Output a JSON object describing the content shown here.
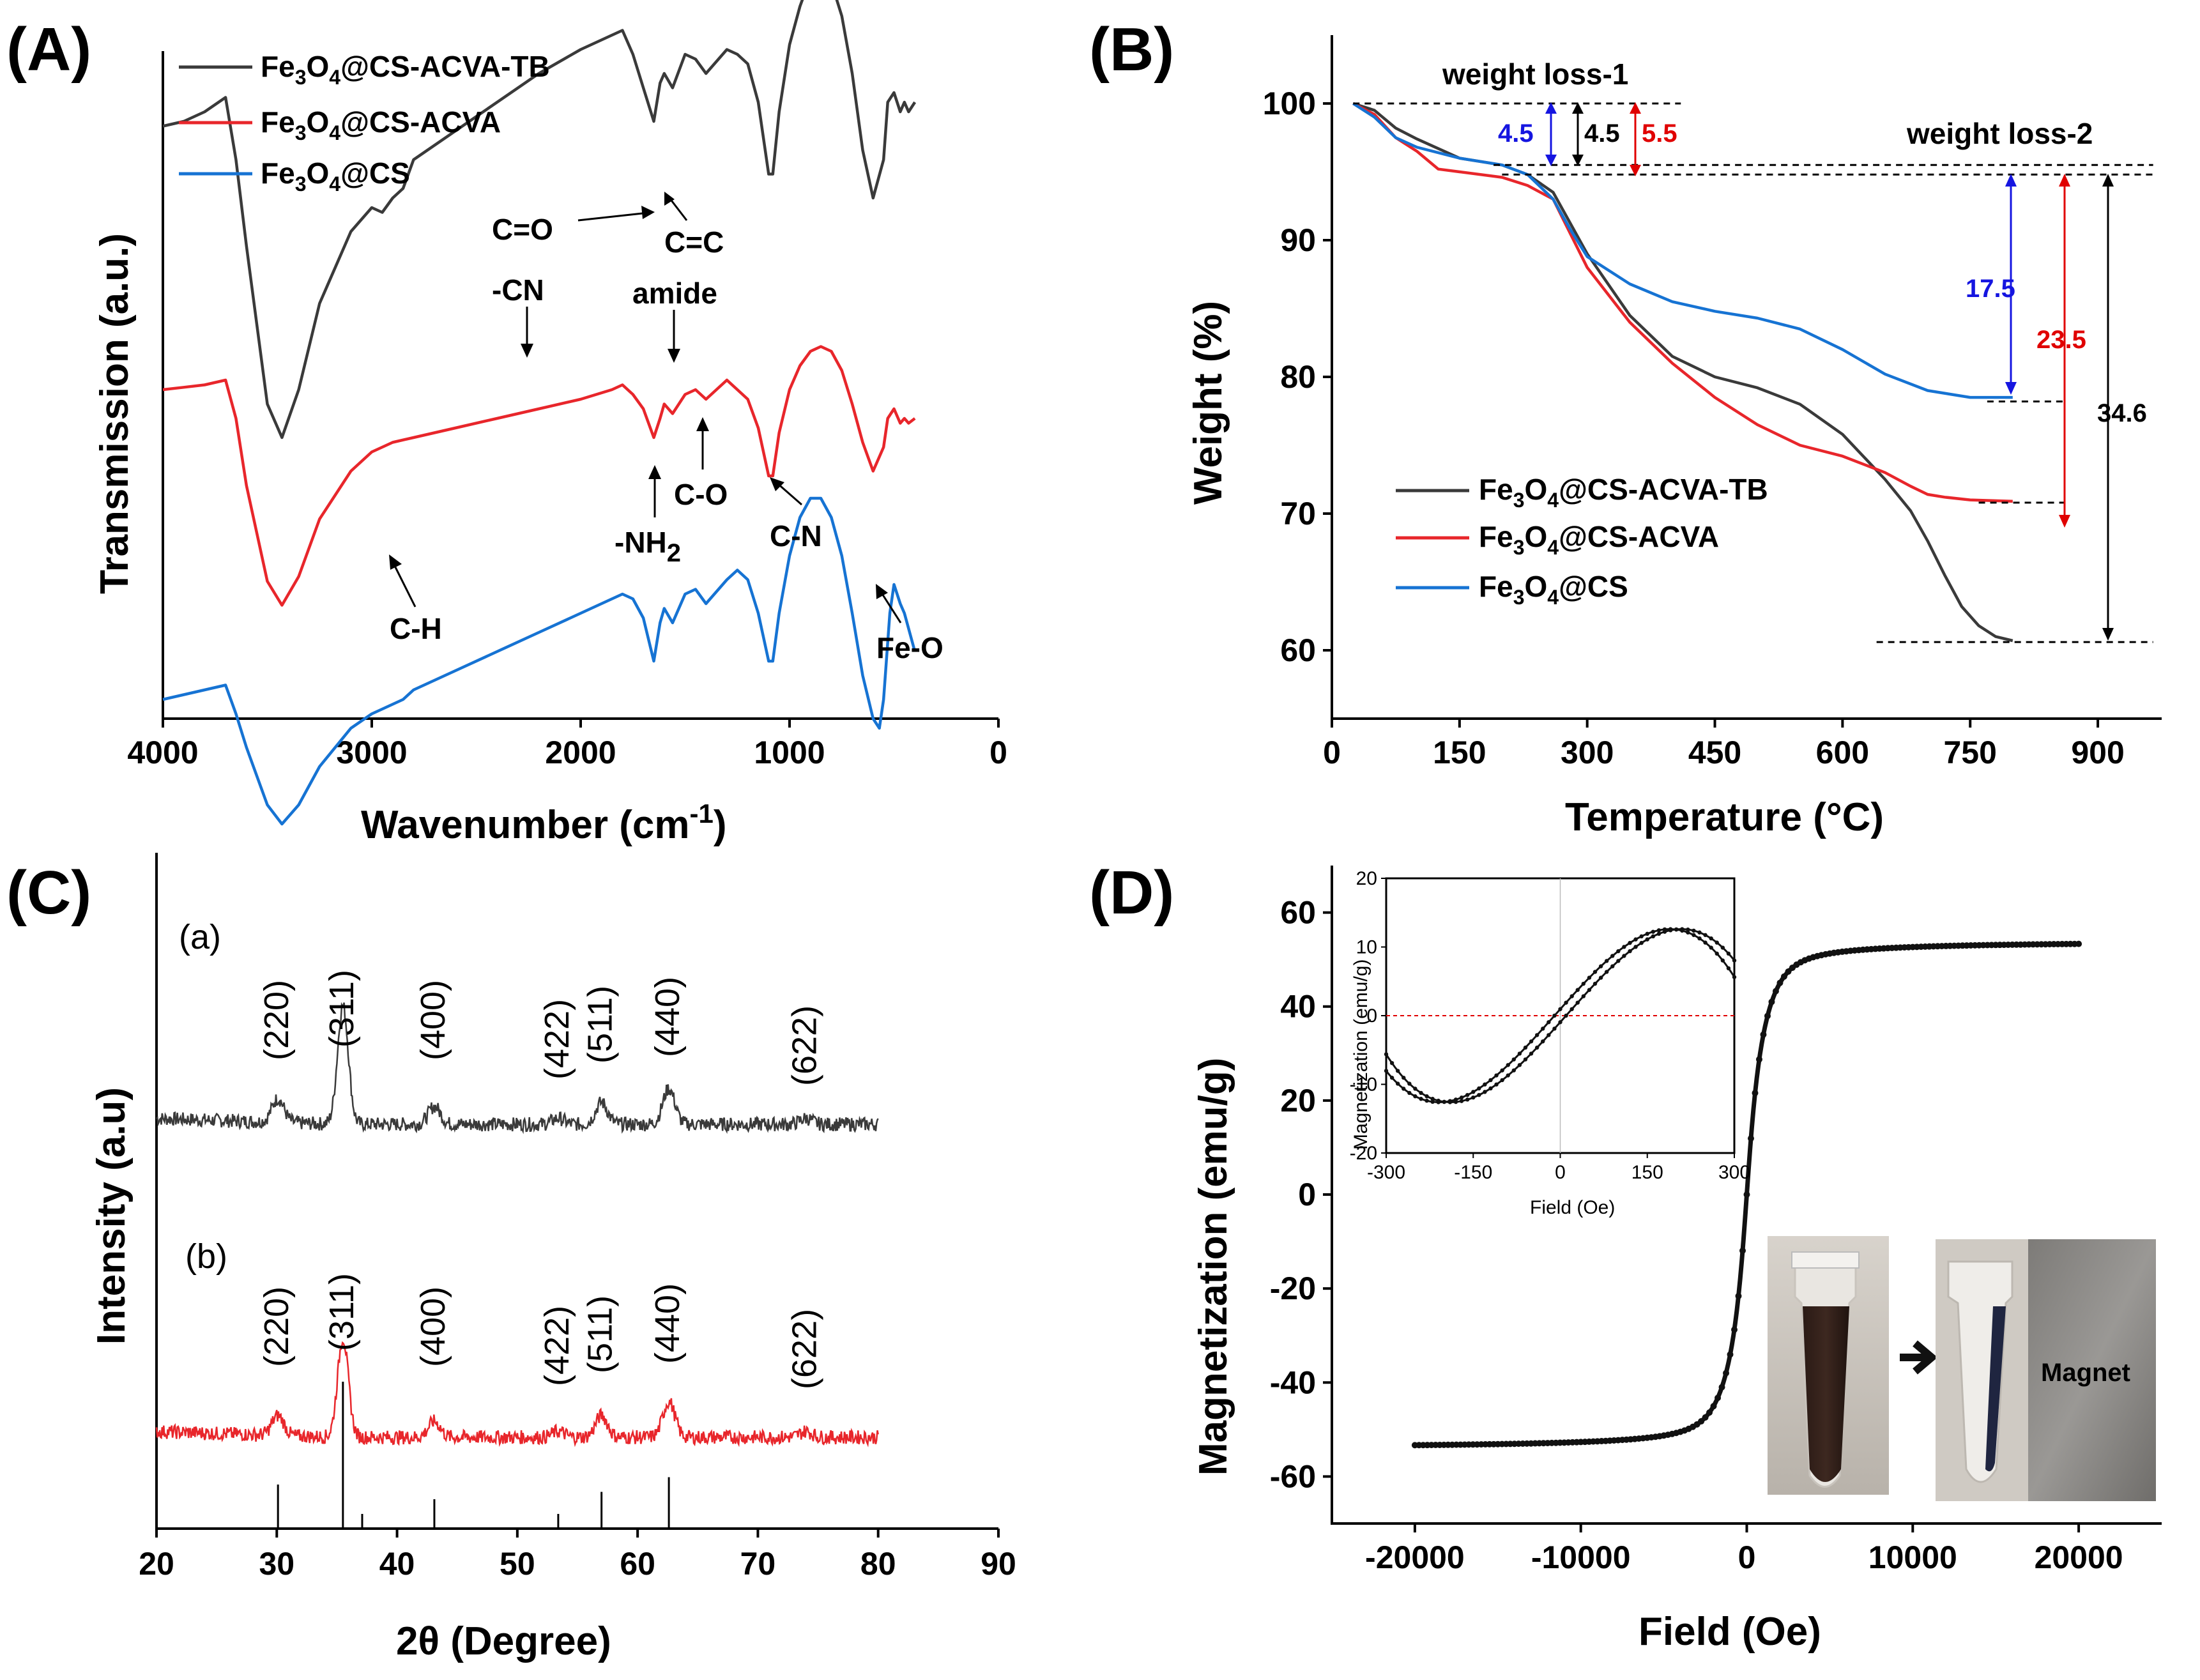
{
  "colors": {
    "black": "#3a3a3a",
    "red": "#e8262b",
    "blue": "#1673d3",
    "darkblue": "#1515e0",
    "annred": "#e00000"
  },
  "chart_data": [
    {
      "id": "A",
      "type": "line",
      "panel_label": "(A)",
      "xlabel": "Wavenumber (cm",
      "xlabel_sup": "-1",
      "xlabel_end": ")",
      "ylabel": "Transmission (a.u.)",
      "xlim": [
        4000,
        0
      ],
      "xticks": [
        "4000",
        "3000",
        "2000",
        "1000",
        "0"
      ],
      "legend": [
        "Fe3O4@CS-ACVA-TB",
        "Fe3O4@CS-ACVA",
        "Fe3O4@CS"
      ],
      "series": [
        {
          "name": "Fe3O4@CS-ACVA-TB",
          "color": "#3a3a3a",
          "x": [
            4000,
            3900,
            3800,
            3700,
            3650,
            3600,
            3500,
            3430,
            3350,
            3250,
            3100,
            3000,
            2950,
            2900,
            2850,
            2800,
            2600,
            2400,
            2200,
            2000,
            1850,
            1800,
            1750,
            1700,
            1650,
            1620,
            1600,
            1560,
            1500,
            1450,
            1400,
            1300,
            1250,
            1200,
            1150,
            1100,
            1080,
            1050,
            1000,
            950,
            900,
            850,
            800,
            750,
            700,
            650,
            600,
            550,
            530,
            500,
            470,
            450,
            430,
            400
          ],
          "y": [
            25,
            26,
            28,
            31,
            18,
            0,
            -33,
            -40,
            -30,
            -12,
            3,
            8,
            7,
            10,
            12,
            18,
            24,
            30,
            36,
            41,
            44,
            45,
            40,
            33,
            26,
            34,
            36,
            33,
            40,
            39,
            36,
            41,
            40,
            38,
            30,
            15,
            15,
            28,
            42,
            50,
            56,
            57,
            55,
            48,
            36,
            20,
            10,
            18,
            30,
            32,
            28,
            30,
            28,
            30
          ]
        },
        {
          "name": "Fe3O4@CS-ACVA",
          "color": "#e8262b",
          "x": [
            4000,
            3900,
            3800,
            3700,
            3650,
            3600,
            3500,
            3430,
            3350,
            3250,
            3100,
            3000,
            2950,
            2900,
            2800,
            2600,
            2400,
            2200,
            2000,
            1850,
            1800,
            1750,
            1700,
            1650,
            1620,
            1600,
            1560,
            1500,
            1450,
            1400,
            1300,
            1250,
            1200,
            1150,
            1100,
            1080,
            1050,
            1000,
            950,
            900,
            850,
            800,
            750,
            700,
            650,
            600,
            550,
            530,
            500,
            470,
            450,
            430,
            400
          ],
          "y": [
            12,
            12.5,
            13,
            14,
            6,
            -8,
            -28,
            -33,
            -27,
            -15,
            -5,
            -1,
            0,
            1,
            2,
            4,
            6,
            8,
            10,
            12,
            13,
            11,
            8,
            2,
            6,
            9,
            7,
            11,
            12,
            10,
            14,
            12,
            10,
            4,
            -6,
            -6,
            3,
            12,
            17,
            20,
            21,
            20,
            16,
            9,
            1,
            -5,
            0,
            6,
            8,
            5,
            6,
            5,
            6
          ]
        },
        {
          "name": "Fe3O4@CS",
          "color": "#1673d3",
          "x": [
            4000,
            3900,
            3800,
            3700,
            3650,
            3600,
            3500,
            3430,
            3350,
            3250,
            3100,
            3000,
            2950,
            2900,
            2850,
            2800,
            2600,
            2400,
            2200,
            2000,
            1850,
            1800,
            1750,
            1700,
            1650,
            1620,
            1600,
            1560,
            1500,
            1450,
            1400,
            1300,
            1250,
            1200,
            1150,
            1100,
            1080,
            1050,
            1000,
            950,
            900,
            850,
            800,
            750,
            700,
            650,
            600,
            570,
            550,
            520,
            500,
            470,
            450,
            400
          ],
          "y": [
            -30,
            -29,
            -28,
            -27,
            -33,
            -40,
            -52,
            -56,
            -52,
            -44,
            -36,
            -33,
            -32,
            -31,
            -30,
            -28,
            -24,
            -20,
            -16,
            -12,
            -9,
            -8,
            -9,
            -13,
            -22,
            -14,
            -11,
            -14,
            -8,
            -7,
            -10,
            -5,
            -3,
            -5,
            -12,
            -22,
            -22,
            -12,
            0,
            8,
            12,
            12,
            8,
            0,
            -12,
            -25,
            -34,
            -36,
            -30,
            -12,
            -6,
            -10,
            -12,
            -20
          ]
        }
      ],
      "annotations": [
        "C=O",
        "C=C",
        "-CN",
        "amide",
        "-NH",
        "2",
        "C-O",
        "C-N",
        "C-H",
        "Fe-O"
      ]
    },
    {
      "id": "B",
      "type": "line",
      "panel_label": "(B)",
      "xlabel": "Temperature (°C)",
      "ylabel": "Weight (%)",
      "xlim": [
        0,
        975
      ],
      "ylim": [
        55,
        105
      ],
      "xticks": [
        "0",
        "150",
        "300",
        "450",
        "600",
        "750",
        "900"
      ],
      "yticks": [
        "60",
        "70",
        "80",
        "90",
        "100"
      ],
      "legend": [
        "Fe3O4@CS-ACVA-TB",
        "Fe3O4@CS-ACVA",
        "Fe3O4@CS"
      ],
      "series": [
        {
          "name": "Fe3O4@CS-ACVA-TB",
          "color": "#3a3a3a",
          "x": [
            25,
            50,
            75,
            100,
            150,
            200,
            230,
            260,
            300,
            350,
            400,
            450,
            500,
            550,
            600,
            650,
            680,
            700,
            720,
            740,
            760,
            780,
            800
          ],
          "y": [
            100,
            99.5,
            98.2,
            97.4,
            96,
            95.5,
            94.8,
            93.5,
            89,
            84.5,
            81.5,
            80,
            79.2,
            78,
            75.8,
            72.5,
            70.2,
            68,
            65.5,
            63.2,
            61.8,
            61.0,
            60.7
          ]
        },
        {
          "name": "Fe3O4@CS-ACVA",
          "color": "#e8262b",
          "x": [
            25,
            50,
            75,
            100,
            125,
            150,
            200,
            230,
            260,
            300,
            350,
            400,
            450,
            500,
            550,
            600,
            650,
            680,
            700,
            720,
            750,
            800
          ],
          "y": [
            100,
            99.2,
            97.5,
            96.5,
            95.2,
            95,
            94.6,
            94,
            93,
            88,
            84,
            81,
            78.5,
            76.5,
            75,
            74.2,
            73,
            72,
            71.4,
            71.2,
            71.0,
            70.9
          ]
        },
        {
          "name": "Fe3O4@CS",
          "color": "#1673d3",
          "x": [
            25,
            50,
            75,
            100,
            150,
            200,
            230,
            260,
            280,
            300,
            350,
            400,
            450,
            500,
            550,
            600,
            650,
            700,
            750,
            800
          ],
          "y": [
            100,
            99,
            97.5,
            96.8,
            96,
            95.5,
            94.8,
            93,
            90.8,
            88.8,
            86.8,
            85.5,
            84.8,
            84.3,
            83.5,
            82,
            80.2,
            79,
            78.5,
            78.5
          ]
        }
      ],
      "annotations": {
        "weight_loss_1": "weight loss-1",
        "weight_loss_2": "weight loss-2",
        "blue_small": "4.5",
        "black_small": "4.5",
        "red_small": "5.5",
        "blue_big": "17.5",
        "red_big": "23.5",
        "black_big": "34.6"
      }
    },
    {
      "id": "C",
      "type": "line",
      "panel_label": "(C)",
      "xlabel": "2θ (Degree)",
      "ylabel": "Intensity (a.u)",
      "xlim": [
        20,
        90
      ],
      "xticks": [
        "20",
        "30",
        "40",
        "50",
        "60",
        "70",
        "80",
        "90"
      ],
      "series_labels": [
        "(a)",
        "(b)"
      ],
      "peaks": [
        {
          "pos": 30.1,
          "label": "(220)"
        },
        {
          "pos": 35.5,
          "label": "(311)"
        },
        {
          "pos": 43.1,
          "label": "(400)"
        },
        {
          "pos": 53.4,
          "label": "(422)"
        },
        {
          "pos": 57.0,
          "label": "(511)"
        },
        {
          "pos": 62.6,
          "label": "(440)"
        },
        {
          "pos": 74.0,
          "label": "(622)"
        }
      ],
      "series": [
        {
          "name": "(a)",
          "color": "#3a3a3a",
          "x_range": [
            20,
            80
          ],
          "peak_heights": [
            12,
            60,
            9,
            3,
            11,
            18,
            3
          ]
        },
        {
          "name": "(b)",
          "color": "#e8262b",
          "x_range": [
            20,
            80
          ],
          "peak_heights": [
            10,
            50,
            8,
            3,
            11,
            18,
            3
          ]
        }
      ],
      "reference_sticks": [
        {
          "x": 30.1,
          "h": 0.3
        },
        {
          "x": 35.5,
          "h": 1.0
        },
        {
          "x": 37.1,
          "h": 0.1
        },
        {
          "x": 43.1,
          "h": 0.2
        },
        {
          "x": 53.4,
          "h": 0.1
        },
        {
          "x": 57.0,
          "h": 0.25
        },
        {
          "x": 62.6,
          "h": 0.35
        }
      ]
    },
    {
      "id": "D",
      "type": "line",
      "panel_label": "(D)",
      "xlabel": "Field (Oe)",
      "ylabel": "Magnetization (emu/g)",
      "xlim": [
        -25000,
        25000
      ],
      "ylim": [
        -70,
        70
      ],
      "xticks": [
        "-20000",
        "-10000",
        "0",
        "10000",
        "20000"
      ],
      "yticks": [
        "-60",
        "-40",
        "-20",
        "0",
        "20",
        "40",
        "60"
      ],
      "series": [
        {
          "name": "M-H loop",
          "color": "#111111",
          "ms": 54
        }
      ],
      "inset": {
        "xlabel": "Field (Oe)",
        "ylabel": "Magnetization (emu/g)",
        "xlim": [
          -300,
          300
        ],
        "ylim": [
          -20,
          20
        ],
        "xticks": [
          "-300",
          "-150",
          "0",
          "150",
          "300"
        ],
        "yticks": [
          "20",
          "10",
          "0",
          "-10",
          "-20"
        ]
      },
      "photo_label": "Magnet"
    }
  ]
}
